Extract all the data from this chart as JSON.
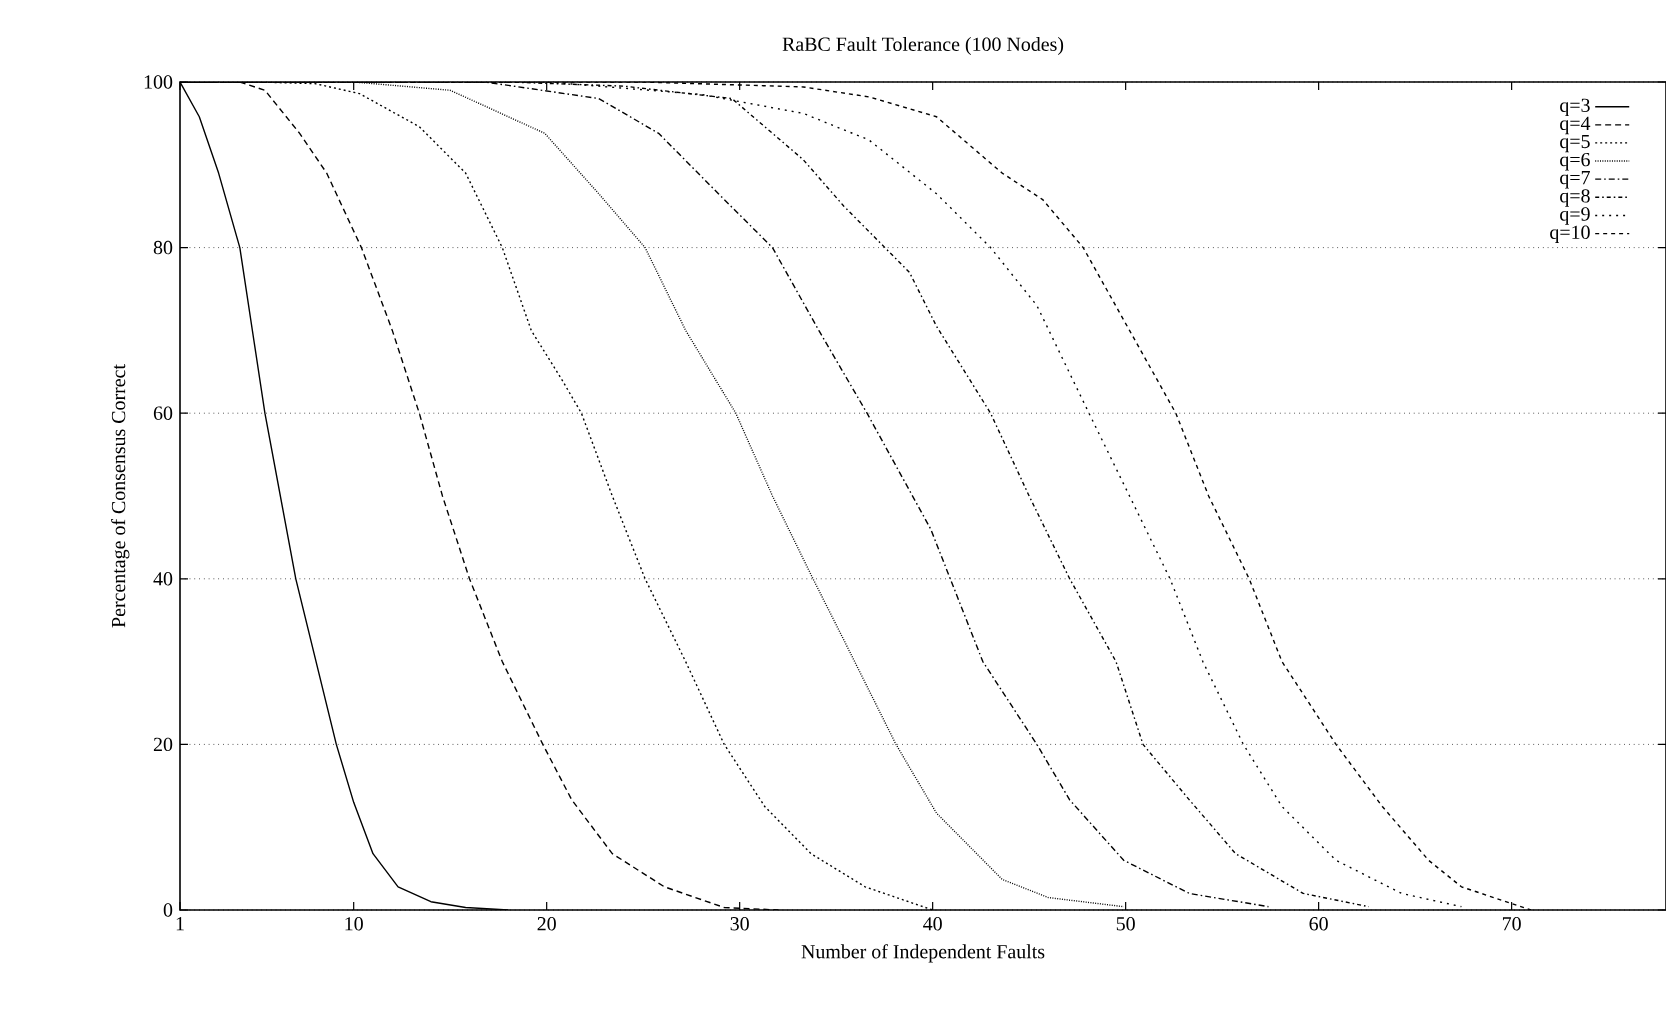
{
  "chart_data": {
    "type": "line",
    "title": "RaBC Fault Tolerance (100 Nodes)",
    "xlabel": "Number of Independent Faults",
    "ylabel": "Percentage of Consensus Correct",
    "xlim": [
      1,
      78
    ],
    "ylim": [
      0,
      100
    ],
    "xticks": [
      1,
      10,
      20,
      30,
      40,
      50,
      60,
      70
    ],
    "yticks": [
      0,
      20,
      40,
      60,
      80,
      100
    ],
    "grid": "y",
    "legend": "top right",
    "marker": "none",
    "series": [
      {
        "name": "q=3",
        "color": "#000000",
        "line_style": "solid",
        "x": [
          1,
          2,
          3,
          4.1,
          5.4,
          7,
          9.1,
          10,
          11,
          12.3,
          14,
          15.8,
          18
        ],
        "values": [
          100,
          95.8,
          89,
          80,
          60,
          40,
          20,
          13,
          6.8,
          2.8,
          1,
          0.3,
          0
        ]
      },
      {
        "name": "q=4",
        "color": "#000000",
        "line_style": "dashed",
        "x": [
          1,
          4.1,
          5.4,
          7.2,
          8.6,
          10.4,
          12,
          13.4,
          14.6,
          16,
          17.7,
          19.8,
          21.3,
          23.4,
          26.1,
          29.2,
          32
        ],
        "values": [
          100,
          100,
          99,
          93.8,
          89,
          80,
          70,
          60,
          50,
          40,
          30,
          20,
          13.3,
          6.8,
          2.8,
          0.3,
          0
        ]
      },
      {
        "name": "q=5",
        "color": "#000000",
        "line_style": "dotted",
        "x": [
          1,
          5,
          8,
          10.3,
          13.4,
          15.8,
          17.7,
          19.2,
          20.8,
          21.8,
          23.4,
          25.1,
          27.2,
          29.2,
          31.3,
          33.7,
          36.5,
          40
        ],
        "values": [
          100,
          100,
          99.8,
          98.6,
          94.6,
          89,
          80,
          70,
          64,
          60,
          50,
          40,
          30,
          20,
          12.5,
          6.8,
          2.8,
          0
        ]
      },
      {
        "name": "q=6",
        "color": "#000000",
        "line_style": "densely dotted",
        "x": [
          1,
          10,
          15,
          19.9,
          22.7,
          25.1,
          27.2,
          29.8,
          31.7,
          33.8,
          35.4,
          38.1,
          40.2,
          43.6,
          46,
          49.9
        ],
        "values": [
          100,
          100,
          99,
          93.8,
          86.5,
          80,
          70,
          60,
          50,
          40,
          32.6,
          20,
          11.7,
          3.7,
          1.5,
          0.4
        ]
      },
      {
        "name": "q=7",
        "color": "#000000",
        "line_style": "dashdotted",
        "x": [
          1,
          16.8,
          22.7,
          25.8,
          28.9,
          31.7,
          34.1,
          36.6,
          39.9,
          42.6,
          45.4,
          47.1,
          49.9,
          53.3,
          57.4
        ],
        "values": [
          100,
          100,
          98,
          93.8,
          86.5,
          80,
          70,
          60,
          46,
          30,
          20,
          13.3,
          6,
          2,
          0.4
        ]
      },
      {
        "name": "q=8",
        "color": "#000000",
        "line_style": "densely dashdotted",
        "x": [
          1,
          18,
          24,
          29.6,
          33.3,
          35.4,
          38.8,
          40.2,
          43,
          45,
          47.1,
          49.5,
          50.9,
          53.3,
          55.7,
          59.2,
          62.6
        ],
        "values": [
          100,
          100,
          99.5,
          98,
          90.6,
          85,
          77,
          70.5,
          60,
          50,
          40,
          30,
          20,
          13.3,
          6.8,
          2,
          0.4
        ]
      },
      {
        "name": "q=9",
        "color": "#000000",
        "line_style": "loosely dotted",
        "x": [
          1,
          20,
          28,
          33.3,
          36.7,
          40.2,
          43,
          45.4,
          48.1,
          50.2,
          52.3,
          54,
          56.1,
          58.1,
          60.9,
          64.3,
          67.4
        ],
        "values": [
          100,
          100,
          98.5,
          96.2,
          93,
          86.5,
          80,
          73,
          60,
          50,
          40,
          30,
          20,
          12.5,
          6,
          2,
          0.4
        ]
      },
      {
        "name": "q=10",
        "color": "#000000",
        "line_style": "densely dashed",
        "x": [
          1,
          25,
          33.3,
          36.7,
          40.2,
          43.6,
          45.7,
          47.8,
          50.2,
          52.6,
          54.3,
          56.4,
          58.1,
          60.9,
          63.3,
          65.7,
          67.4,
          71
        ],
        "values": [
          100,
          100,
          99.4,
          98.2,
          95.8,
          89,
          85.8,
          80,
          70,
          60,
          50,
          40,
          30,
          20,
          12.5,
          6,
          2.8,
          0
        ]
      }
    ]
  }
}
